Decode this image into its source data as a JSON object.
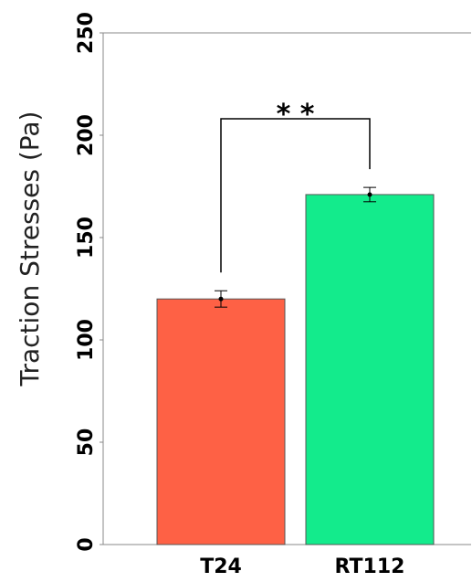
{
  "chart_data": {
    "type": "bar",
    "title": "",
    "xlabel": "",
    "ylabel": "Traction Stresses (Pa)",
    "categories": [
      "T24",
      "RT112"
    ],
    "values": [
      120,
      171
    ],
    "errors": [
      4,
      3.5
    ],
    "colors": [
      "#fe6145",
      "#13eb8c"
    ],
    "ylim": [
      0,
      250
    ],
    "yticks": [
      0,
      50,
      100,
      150,
      200,
      250
    ],
    "grid": false,
    "legend": "none",
    "annotations": [
      {
        "type": "significance-bracket",
        "between": [
          "T24",
          "RT112"
        ],
        "label": "* *"
      }
    ]
  }
}
